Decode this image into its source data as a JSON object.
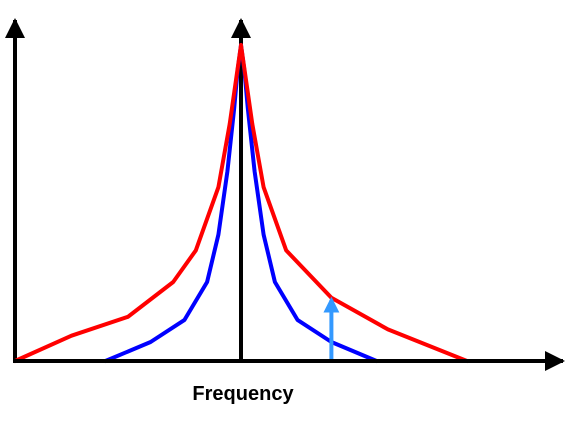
{
  "chart_data": {
    "type": "line",
    "title": "",
    "xlabel": "Frequency",
    "ylabel": "",
    "xlim": [
      -1,
      1.4
    ],
    "ylim": [
      0,
      1
    ],
    "grid": false,
    "legend": "none",
    "series": [
      {
        "color": "#0000ff",
        "x": [
          -0.6,
          -0.4,
          -0.25,
          -0.15,
          -0.1,
          -0.06,
          -0.03,
          -0.015,
          0,
          0.015,
          0.03,
          0.06,
          0.1,
          0.15,
          0.25,
          0.4,
          0.6
        ],
        "y": [
          0,
          0.06,
          0.13,
          0.25,
          0.4,
          0.6,
          0.8,
          0.92,
          1.0,
          0.92,
          0.8,
          0.6,
          0.4,
          0.25,
          0.13,
          0.06,
          0
        ]
      },
      {
        "color": "#ff0000",
        "x": [
          -1.0,
          -0.75,
          -0.5,
          -0.3,
          -0.2,
          -0.1,
          -0.05,
          0,
          0.05,
          0.1,
          0.2,
          0.4,
          0.65,
          1.0
        ],
        "y": [
          0,
          0.08,
          0.14,
          0.25,
          0.35,
          0.55,
          0.75,
          1.0,
          0.75,
          0.55,
          0.35,
          0.2,
          0.1,
          0
        ]
      }
    ],
    "annotations": [
      {
        "type": "arrow",
        "color": "#3399ff",
        "x": 0.4,
        "y_from": 0,
        "y_to": 0.2
      }
    ]
  }
}
